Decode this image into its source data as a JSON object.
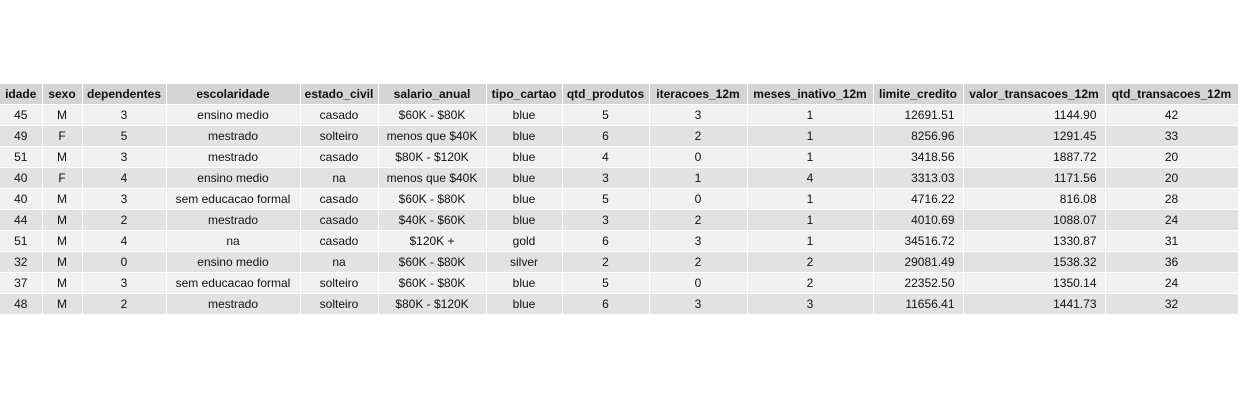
{
  "columns": [
    "idade",
    "sexo",
    "dependentes",
    "escolaridade",
    "estado_civil",
    "salario_anual",
    "tipo_cartao",
    "qtd_produtos",
    "iteracoes_12m",
    "meses_inativo_12m",
    "limite_credito",
    "valor_transacoes_12m",
    "qtd_transacoes_12m"
  ],
  "rows": [
    [
      "45",
      "M",
      "3",
      "ensino medio",
      "casado",
      "$60K - $80K",
      "blue",
      "5",
      "3",
      "1",
      "12691.51",
      "1144.90",
      "42"
    ],
    [
      "49",
      "F",
      "5",
      "mestrado",
      "solteiro",
      "menos que $40K",
      "blue",
      "6",
      "2",
      "1",
      "8256.96",
      "1291.45",
      "33"
    ],
    [
      "51",
      "M",
      "3",
      "mestrado",
      "casado",
      "$80K - $120K",
      "blue",
      "4",
      "0",
      "1",
      "3418.56",
      "1887.72",
      "20"
    ],
    [
      "40",
      "F",
      "4",
      "ensino medio",
      "na",
      "menos que $40K",
      "blue",
      "3",
      "1",
      "4",
      "3313.03",
      "1171.56",
      "20"
    ],
    [
      "40",
      "M",
      "3",
      "sem educacao formal",
      "casado",
      "$60K - $80K",
      "blue",
      "5",
      "0",
      "1",
      "4716.22",
      "816.08",
      "28"
    ],
    [
      "44",
      "M",
      "2",
      "mestrado",
      "casado",
      "$40K - $60K",
      "blue",
      "3",
      "2",
      "1",
      "4010.69",
      "1088.07",
      "24"
    ],
    [
      "51",
      "M",
      "4",
      "na",
      "casado",
      "$120K +",
      "gold",
      "6",
      "3",
      "1",
      "34516.72",
      "1330.87",
      "31"
    ],
    [
      "32",
      "M",
      "0",
      "ensino medio",
      "na",
      "$60K - $80K",
      "silver",
      "2",
      "2",
      "2",
      "29081.49",
      "1538.32",
      "36"
    ],
    [
      "37",
      "M",
      "3",
      "sem educacao formal",
      "solteiro",
      "$60K - $80K",
      "blue",
      "5",
      "0",
      "2",
      "22352.50",
      "1350.14",
      "24"
    ],
    [
      "48",
      "M",
      "2",
      "mestrado",
      "solteiro",
      "$80K - $120K",
      "blue",
      "6",
      "3",
      "3",
      "11656.41",
      "1441.73",
      "32"
    ]
  ]
}
